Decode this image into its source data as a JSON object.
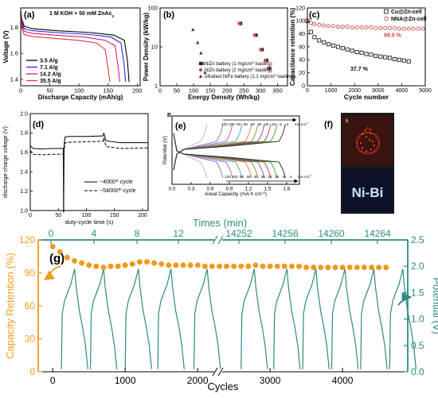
{
  "colors": {
    "orange": "#f39a1c",
    "teal": "#2e8a7f",
    "red_circle": "#c84a4a",
    "black": "#000000",
    "blue": "#2a2ad8",
    "magenta": "#d2207a",
    "led_red": "#ff3b1e",
    "led_blue": "#cfe2ff"
  },
  "chart_data": [
    {
      "id": "a",
      "type": "line",
      "panel_label": "(a)",
      "annotation": "1 M KOH + 50 mM ZnAc",
      "annotation_sub": "2",
      "xlabel": "Discharge Capacity (mAh/g)",
      "ylabel": "Voltage (V)",
      "xlim": [
        0,
        205
      ],
      "ylim": [
        1.35,
        1.95
      ],
      "xticks": [
        0,
        50,
        100,
        150,
        200
      ],
      "yticks": [
        1.4,
        1.6,
        1.8
      ],
      "legend_position": "bottom-left",
      "series": [
        {
          "name": "3.5 A/g",
          "color": "#000000",
          "x": [
            0,
            2,
            6,
            20,
            60,
            120,
            160,
            178,
            183,
            186
          ],
          "y": [
            1.93,
            1.86,
            1.81,
            1.79,
            1.775,
            1.76,
            1.74,
            1.7,
            1.55,
            1.38
          ]
        },
        {
          "name": "7.1 A/g",
          "color": "#2a2ad8",
          "x": [
            0,
            2,
            6,
            20,
            60,
            120,
            155,
            172,
            177,
            180
          ],
          "y": [
            1.93,
            1.84,
            1.79,
            1.775,
            1.76,
            1.745,
            1.725,
            1.68,
            1.53,
            1.38
          ]
        },
        {
          "name": "14.2 A/g",
          "color": "#d2207a",
          "x": [
            0,
            2,
            6,
            20,
            60,
            110,
            145,
            162,
            167,
            170
          ],
          "y": [
            1.92,
            1.82,
            1.77,
            1.755,
            1.74,
            1.725,
            1.7,
            1.66,
            1.5,
            1.38
          ]
        },
        {
          "name": "35.5 A/g",
          "color": "#d93a3a",
          "x": [
            0,
            2,
            6,
            20,
            60,
            100,
            130,
            145,
            150,
            153
          ],
          "y": [
            1.91,
            1.79,
            1.745,
            1.73,
            1.715,
            1.7,
            1.68,
            1.63,
            1.48,
            1.38
          ]
        }
      ]
    },
    {
      "id": "b",
      "type": "scatter",
      "panel_label": "(b)",
      "xlabel": "Energy Density (Wh/kg)",
      "ylabel": "Power Density (kW/kg)",
      "xlim": [
        0,
        380
      ],
      "ylim": [
        1,
        100
      ],
      "yscale": "log",
      "xticks": [
        0,
        50,
        100,
        150,
        200,
        250,
        300,
        350
      ],
      "yticks": [
        1,
        10,
        100
      ],
      "legend_position": "bottom-right",
      "series": [
        {
          "name": "NiZn battery (1 mg/cm",
          "name_sup": "2",
          "name_end": " loading)",
          "color": "#222222",
          "marker": "square",
          "x": [
            240,
            286,
            304,
            318,
            326
          ],
          "y": [
            40,
            20,
            8.5,
            4.5,
            2.8
          ]
        },
        {
          "name": "NiZn battery (2 mg/cm",
          "name_sup": "2",
          "name_end": " loading)",
          "color": "#c84a4a",
          "marker": "circle",
          "x": [
            236,
            282,
            300,
            314,
            322
          ],
          "y": [
            40,
            20,
            8.5,
            4.5,
            2.8
          ]
        },
        {
          "name": "ultrafast NiFe battery (1.1 mg/cm",
          "name_sup": "2",
          "name_end": " loading)",
          "color": "#444444",
          "marker": "triangle",
          "x": [
            98,
            112,
            122,
            128,
            134
          ],
          "y": [
            28,
            13,
            7,
            3.8,
            2.2
          ]
        }
      ]
    },
    {
      "id": "c",
      "type": "scatter",
      "panel_label": "(c)",
      "xlabel": "Cycle number",
      "ylabel": "Capacitance retention (%)",
      "xlim": [
        0,
        5000
      ],
      "ylim": [
        0,
        120
      ],
      "xticks": [
        0,
        1000,
        2000,
        3000,
        4000,
        5000
      ],
      "yticks": [
        0,
        20,
        40,
        60,
        80,
        100,
        120
      ],
      "legend_position": "top-right",
      "annotations": [
        "88.0 %",
        "37.7 %"
      ],
      "series": [
        {
          "name": "Cu@Zn-cell",
          "color": "#222222",
          "marker": "square",
          "x": [
            0,
            150,
            300,
            500,
            700,
            900,
            1100,
            1300,
            1500,
            1700,
            1900,
            2100,
            2300,
            2500,
            2700,
            2900,
            3100,
            3300,
            3500,
            3700,
            3900,
            4100,
            4300
          ],
          "y": [
            100,
            83,
            75,
            70,
            67,
            64,
            62,
            60,
            58,
            56,
            54,
            52,
            51,
            49,
            48,
            46,
            45,
            44,
            43,
            41,
            40,
            39,
            37.7
          ]
        },
        {
          "name": "NNA@Zn-cell",
          "color": "#c84a4a",
          "marker": "circle",
          "x": [
            0,
            150,
            300,
            500,
            700,
            900,
            1100,
            1300,
            1500,
            1700,
            1900,
            2100,
            2300,
            2500,
            2700,
            2900,
            3100,
            3300,
            3500,
            3700,
            3900,
            4100,
            4300,
            4500,
            4700,
            4900
          ],
          "y": [
            101,
            97,
            95,
            94,
            93,
            92,
            92,
            91,
            91,
            91,
            90,
            90,
            90,
            90,
            90,
            89,
            89,
            89,
            89,
            89,
            88,
            88,
            88,
            88,
            88,
            88
          ]
        }
      ]
    },
    {
      "id": "d",
      "type": "line",
      "panel_label": "(d)",
      "xlabel": "duty-cycle time (s)",
      "ylabel": "discharge-charge voltage (V)",
      "xlim": [
        0,
        210
      ],
      "ylim": [
        1.0,
        2.0
      ],
      "xticks": [
        0,
        50,
        100,
        150,
        200
      ],
      "yticks": [
        1.0,
        1.2,
        1.4,
        1.6,
        1.8,
        2.0
      ],
      "legend_position": "bottom-right",
      "series": [
        {
          "name": "~4000",
          "name_sup": "th",
          "name_end": " cycle",
          "dash": "solid",
          "x": [
            0,
            5,
            20,
            40,
            55,
            59,
            59.5,
            60,
            61,
            62,
            70,
            100,
            130,
            131,
            135,
            160,
            200,
            210
          ],
          "y": [
            1.67,
            1.64,
            1.635,
            1.64,
            1.64,
            1.64,
            0.98,
            1.64,
            1.72,
            1.76,
            1.765,
            1.765,
            1.77,
            1.8,
            1.72,
            1.7,
            1.7,
            1.7
          ]
        },
        {
          "name": "~54000",
          "name_sup": "th",
          "name_end": " cycle",
          "dash": "dashed",
          "x": [
            0,
            5,
            20,
            40,
            55,
            59,
            59.5,
            60,
            61,
            62,
            70,
            100,
            130,
            131,
            135,
            160,
            200,
            210
          ],
          "y": [
            1.62,
            1.58,
            1.575,
            1.58,
            1.58,
            1.585,
            0.98,
            1.585,
            1.66,
            1.7,
            1.705,
            1.71,
            1.715,
            1.75,
            1.66,
            1.64,
            1.645,
            1.645
          ]
        }
      ]
    },
    {
      "id": "e",
      "type": "line",
      "panel_label": "(e)",
      "corner_label": "B",
      "xlabel": "Areal Capacity (mA h cm",
      "xlabel_sup": "-2",
      "xlabel_end": ")",
      "ylabel": "Potential (V)",
      "xlim": [
        0,
        2.0
      ],
      "xticks": [
        0.0,
        0.3,
        0.6,
        0.9,
        1.2,
        1.5,
        1.8
      ],
      "rate_labels": [
        "120",
        "100",
        "80",
        "60",
        "40",
        "30",
        "20",
        "10",
        "6",
        "4"
      ],
      "rate_unit": "mA cm",
      "rate_unit_sup": "-2",
      "rate_capacity_mAh_cm2": [
        0.55,
        0.8,
        0.95,
        1.1,
        1.25,
        1.35,
        1.45,
        1.55,
        1.65,
        1.78
      ],
      "rate_colors": [
        "#b5b5b5",
        "#6b6bd8",
        "#c04f9a",
        "#4aa0a0",
        "#d97a3a",
        "#8a8a2a",
        "#5050c8",
        "#c03030",
        "#30a030",
        "#222222"
      ]
    },
    {
      "id": "f",
      "type": "table",
      "panel_label": "(f)",
      "photo_corner_label": "b",
      "led_text": "Ni-Bi"
    },
    {
      "id": "g",
      "type": "line",
      "panel_label": "(g)",
      "xlabel": "Cycles",
      "ylabel_left": "Capacity Retention (%)",
      "ylabel_right": "Potential (V)",
      "top_axis_label": "Times (min)",
      "xlim": [
        -200,
        4900
      ],
      "xticks": [
        0,
        1000,
        2000,
        3000,
        4000
      ],
      "ylim_left": [
        0,
        120
      ],
      "yticks_left": [
        0,
        30,
        60,
        90,
        120
      ],
      "ylim_right": [
        0,
        2.5
      ],
      "yticks_right": [
        0.0,
        0.5,
        1.0,
        1.5,
        2.0,
        2.5
      ],
      "top_ticks": [
        "0",
        "4",
        "8",
        "12",
        "14252",
        "14256",
        "14260",
        "14264"
      ],
      "retention_cycles": [
        0,
        100,
        200,
        300,
        400,
        500,
        600,
        700,
        800,
        900,
        1000,
        1100,
        1200,
        1300,
        1400,
        1500,
        1600,
        1700,
        1800,
        1900,
        2000,
        2100,
        2200,
        2300,
        2400,
        2500,
        2600,
        2700,
        2800,
        2900,
        3000,
        3100,
        3200,
        3300,
        3400,
        3500,
        3600,
        3700,
        3800,
        3900,
        4000,
        4100,
        4200,
        4300,
        4400,
        4500,
        4600
      ],
      "retention_values": [
        114,
        109,
        104,
        101,
        99,
        97,
        96,
        95,
        96,
        96,
        97,
        98,
        100,
        100,
        99,
        98,
        97,
        97,
        97,
        97,
        97,
        96,
        96,
        96,
        96,
        96,
        96,
        96,
        97,
        96,
        96,
        96,
        96,
        96,
        96,
        95,
        95,
        95,
        95,
        95,
        95,
        95,
        95,
        95,
        95,
        95,
        95
      ],
      "potential_cycles_starts": [
        120,
        520,
        1000,
        1450,
        1950,
        2600,
        3050,
        3450,
        3850,
        4250,
        4650
      ],
      "potential_cycle_width": 380,
      "potential_max_V": 1.95,
      "potential_min_V": 0.05
    }
  ]
}
